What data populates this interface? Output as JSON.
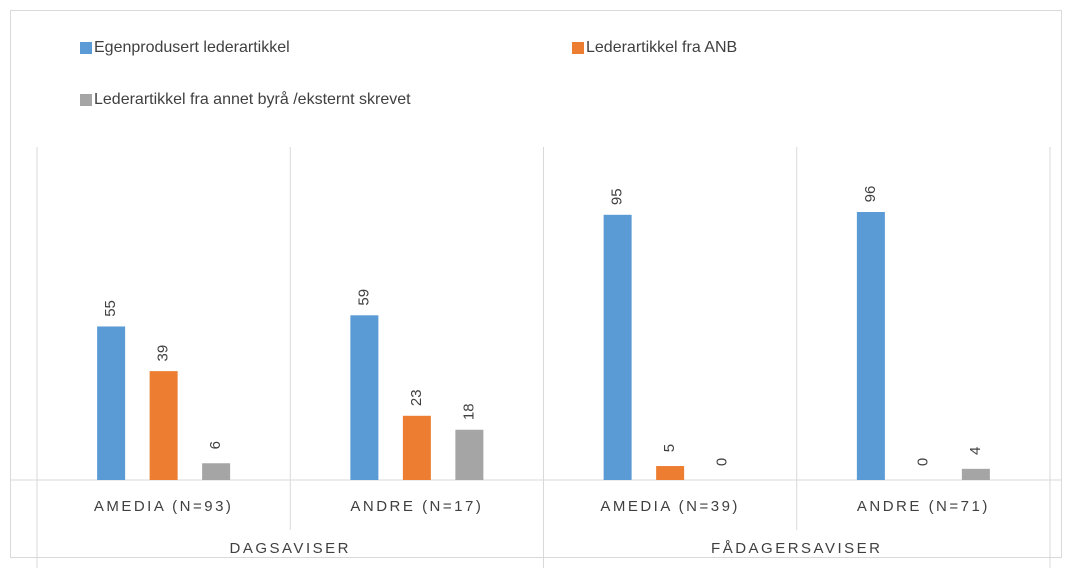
{
  "chart_data": {
    "type": "bar",
    "groups": [
      {
        "name": "DAGSAVISER",
        "categories": [
          "AMEDIA (N=93)",
          "ANDRE (N=17)"
        ]
      },
      {
        "name": "FÅDAGERSAVISER",
        "categories": [
          "AMEDIA (N=39)",
          "ANDRE (N=71)"
        ]
      }
    ],
    "series": [
      {
        "name": "Egenprodusert lederartikkel",
        "color": "#5b9bd5",
        "values": [
          55,
          59,
          95,
          96
        ]
      },
      {
        "name": "Lederartikkel fra ANB",
        "color": "#ed7d31",
        "values": [
          39,
          23,
          5,
          0
        ]
      },
      {
        "name": "Lederartikkel fra annet byrå /eksternt skrevet",
        "color": "#a5a5a5",
        "values": [
          6,
          18,
          0,
          4
        ]
      }
    ]
  }
}
